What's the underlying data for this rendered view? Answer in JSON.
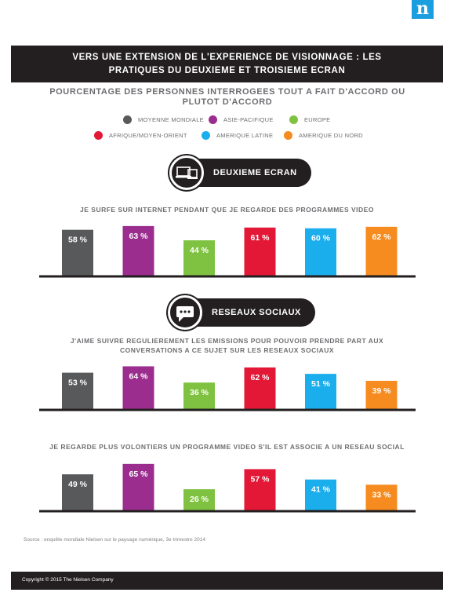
{
  "logo": {
    "letter": "n"
  },
  "header": {
    "title_line1": "VERS UNE EXTENSION DE L'EXPERIENCE DE VISIONNAGE : LES",
    "title_line2": "PRATIQUES DU DEUXIEME ET TROISIEME ECRAN"
  },
  "subtitle": {
    "line1": "POURCENTAGE DES PERSONNES INTERROGEES TOUT A FAIT D'ACCORD OU",
    "line2": "PLUTOT D'ACCORD"
  },
  "legend": [
    {
      "label": "MOYENNE MONDIALE",
      "color": "#58595b"
    },
    {
      "label": "ASIE-PACIFIQUE",
      "color": "#9b2d8e"
    },
    {
      "label": "EUROPE",
      "color": "#7fc241"
    },
    {
      "label": "AFRIQUE/MOYEN-ORIENT",
      "color": "#e31837"
    },
    {
      "label": "AMERIQUE LATINE",
      "color": "#1aaeed"
    },
    {
      "label": "AMERIQUE DU NORD",
      "color": "#f68b1f"
    }
  ],
  "sections": {
    "second_screen": {
      "label": "DEUXIEME ECRAN",
      "icon": "devices-icon"
    },
    "social": {
      "label": "RESEAUX SOCIAUX",
      "icon": "chat-bubble-icon"
    }
  },
  "questions": {
    "q1": "JE SURFE SUR INTERNET PENDANT QUE JE REGARDE DES PROGRAMMES VIDEO",
    "q2_line1": "J'AIME SUIVRE REGULIEREMENT LES EMISSIONS POUR POUVOIR PRENDRE PART AUX",
    "q2_line2": "CONVERSATIONS A CE SUJET SUR LES RESEAUX SOCIAUX",
    "q3": "JE REGARDE PLUS VOLONTIERS UN PROGRAMME VIDEO S'IL EST ASSOCIE A UN RESEAU SOCIAL"
  },
  "chart_data": [
    {
      "type": "bar",
      "categories": [
        "MOYENNE MONDIALE",
        "ASIE-PACIFIQUE",
        "EUROPE",
        "AFRIQUE/MOYEN-ORIENT",
        "AMERIQUE LATINE",
        "AMERIQUE DU NORD"
      ],
      "values": [
        58,
        63,
        44,
        61,
        60,
        62
      ],
      "value_labels": [
        "58 %",
        "63 %",
        "44 %",
        "61 %",
        "60 %",
        "62 %"
      ],
      "colors": [
        "#58595b",
        "#9b2d8e",
        "#7fc241",
        "#e31837",
        "#1aaeed",
        "#f68b1f"
      ],
      "title": "JE SURFE SUR INTERNET PENDANT QUE JE REGARDE DES PROGRAMMES VIDEO",
      "ylim": [
        0,
        100
      ],
      "grid": false
    },
    {
      "type": "bar",
      "categories": [
        "MOYENNE MONDIALE",
        "ASIE-PACIFIQUE",
        "EUROPE",
        "AFRIQUE/MOYEN-ORIENT",
        "AMERIQUE LATINE",
        "AMERIQUE DU NORD"
      ],
      "values": [
        53,
        64,
        36,
        62,
        51,
        39
      ],
      "value_labels": [
        "53 %",
        "64 %",
        "36 %",
        "62 %",
        "51 %",
        "39 %"
      ],
      "colors": [
        "#58595b",
        "#9b2d8e",
        "#7fc241",
        "#e31837",
        "#1aaeed",
        "#f68b1f"
      ],
      "title": "J'AIME SUIVRE REGULIEREMENT LES EMISSIONS POUR POUVOIR PRENDRE PART AUX CONVERSATIONS A CE SUJET SUR LES RESEAUX SOCIAUX",
      "ylim": [
        0,
        100
      ],
      "grid": false
    },
    {
      "type": "bar",
      "categories": [
        "MOYENNE MONDIALE",
        "ASIE-PACIFIQUE",
        "EUROPE",
        "AFRIQUE/MOYEN-ORIENT",
        "AMERIQUE LATINE",
        "AMERIQUE DU NORD"
      ],
      "values": [
        49,
        65,
        26,
        57,
        41,
        33
      ],
      "value_labels": [
        "49 %",
        "65 %",
        "26 %",
        "57 %",
        "41 %",
        "33 %"
      ],
      "colors": [
        "#58595b",
        "#9b2d8e",
        "#7fc241",
        "#e31837",
        "#1aaeed",
        "#f68b1f"
      ],
      "title": "JE REGARDE PLUS VOLONTIERS UN PROGRAMME VIDEO S'IL EST ASSOCIE A UN RESEAU SOCIAL",
      "ylim": [
        0,
        100
      ],
      "grid": false
    }
  ],
  "source": "Source : enquête mondiale Nielsen sur le paysage numérique, 3e trimestre 2014",
  "footer": {
    "copyright": "Copyright © 2015 The Nielsen Company"
  }
}
